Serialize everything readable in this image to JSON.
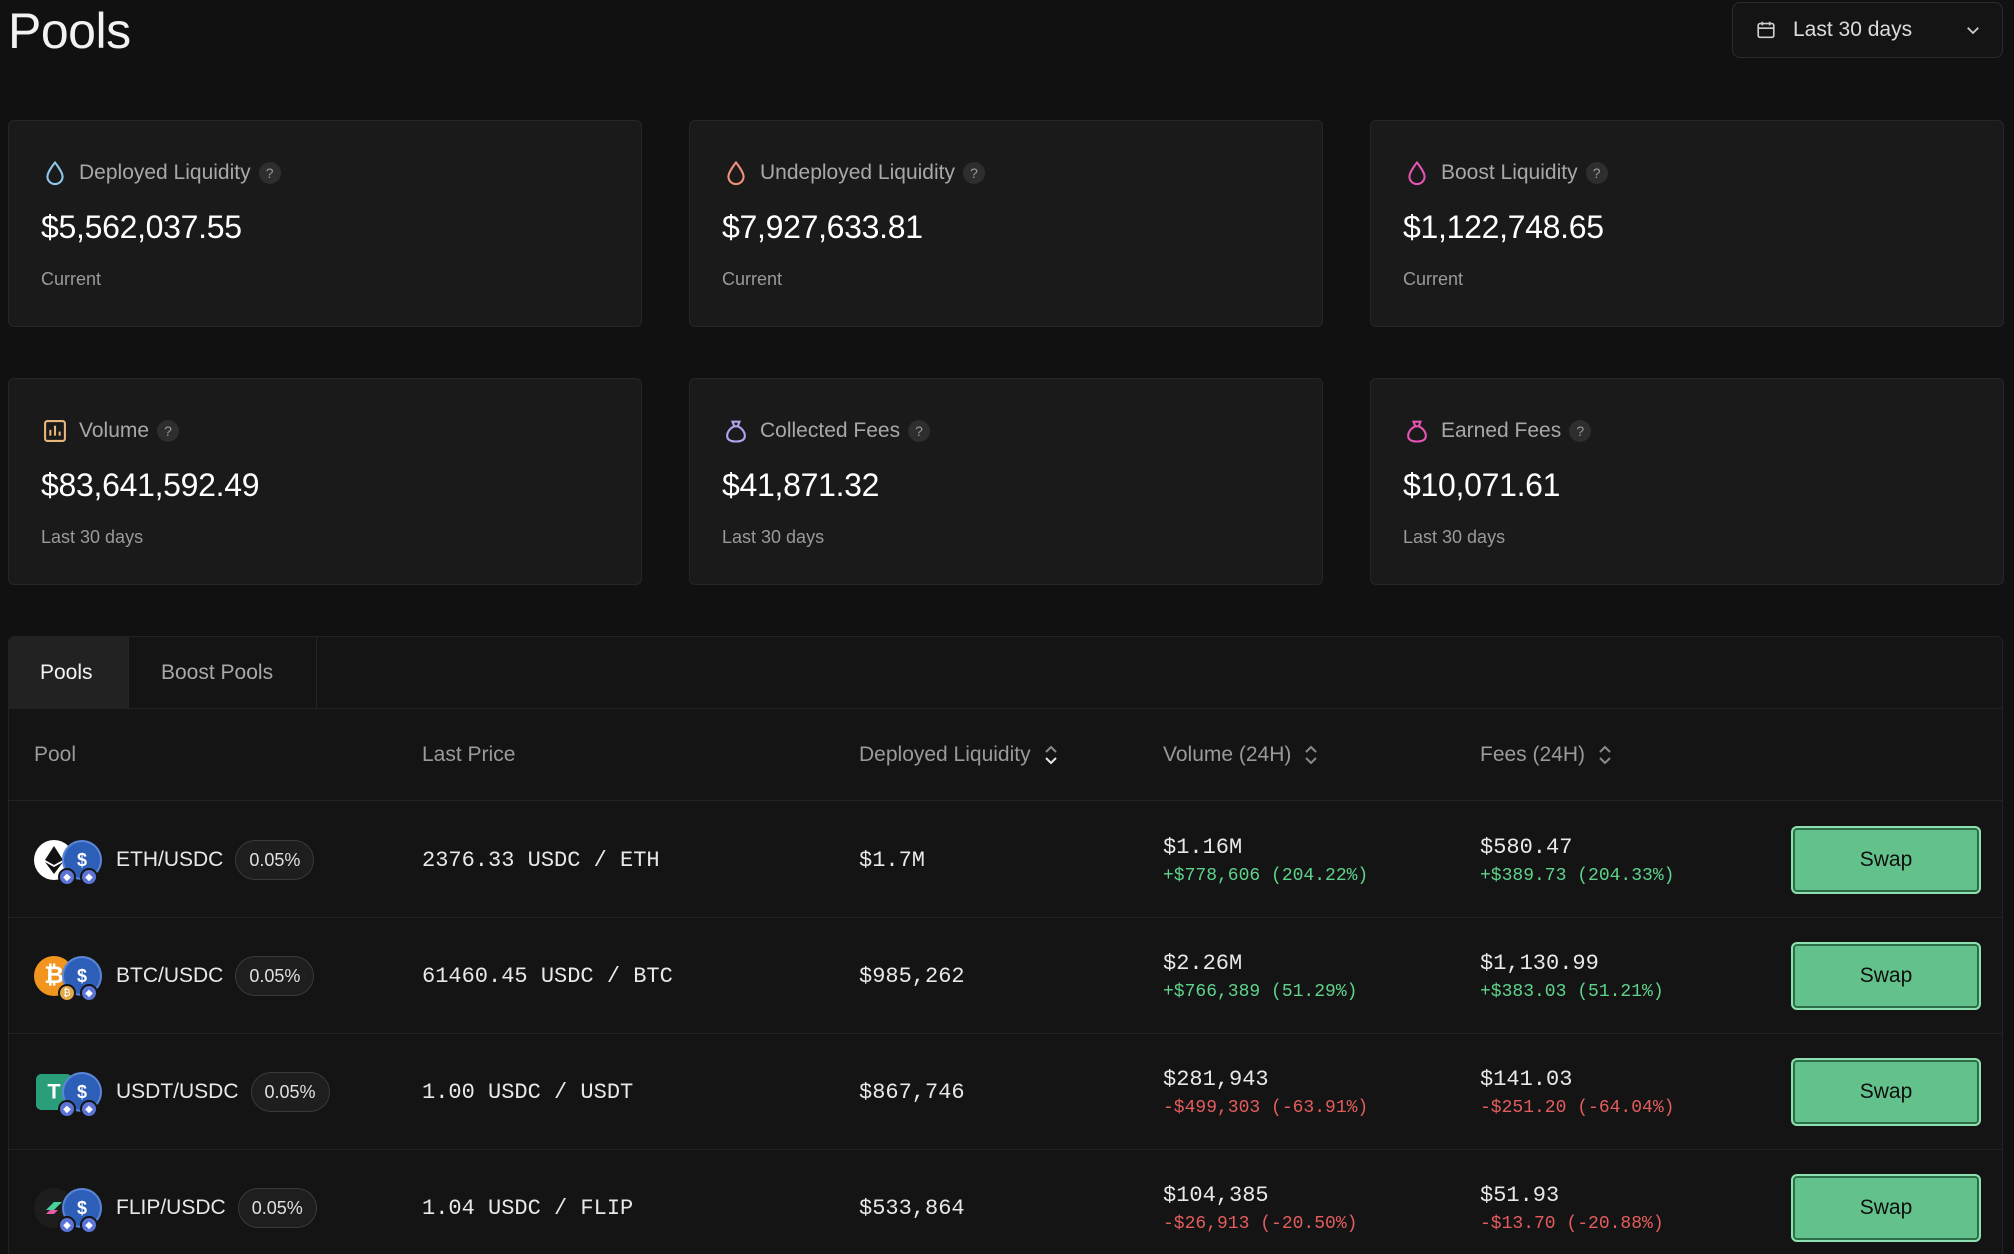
{
  "header": {
    "title": "Pools",
    "range_label": "Last 30 days"
  },
  "stats": [
    {
      "label": "Deployed Liquidity",
      "value": "$5,562,037.55",
      "sub": "Current",
      "icon": "drop-icon",
      "color": "#8ec7e8"
    },
    {
      "label": "Undeployed Liquidity",
      "value": "$7,927,633.81",
      "sub": "Current",
      "icon": "drop-icon",
      "color": "#f0907a"
    },
    {
      "label": "Boost Liquidity",
      "value": "$1,122,748.65",
      "sub": "Current",
      "icon": "drop-icon",
      "color": "#e454b0"
    },
    {
      "label": "Volume",
      "value": "$83,641,592.49",
      "sub": "Last 30 days",
      "icon": "bar-chart-icon",
      "color": "#e8b57a"
    },
    {
      "label": "Collected Fees",
      "value": "$41,871.32",
      "sub": "Last 30 days",
      "icon": "money-bag-icon",
      "color": "#b6a3f0"
    },
    {
      "label": "Earned Fees",
      "value": "$10,071.61",
      "sub": "Last 30 days",
      "icon": "money-bag-icon",
      "color": "#e454b0"
    }
  ],
  "help_glyph": "?",
  "tabs": [
    {
      "label": "Pools",
      "active": true
    },
    {
      "label": "Boost Pools",
      "active": false
    }
  ],
  "columns": {
    "pool": "Pool",
    "last_price": "Last Price",
    "deployed_liquidity": "Deployed Liquidity",
    "volume": "Volume (24H)",
    "fees": "Fees (24H)"
  },
  "rows": [
    {
      "pair": "ETH/USDC",
      "fee_tier": "0.05%",
      "base_icon": "eth-icon",
      "last_price": "2376.33 USDC / ETH",
      "deployed": "$1.7M",
      "volume": "$1.16M",
      "volume_change": "+$778,606 (204.22%)",
      "volume_dir": "pos",
      "fees": "$580.47",
      "fees_change": "+$389.73 (204.33%)",
      "fees_dir": "pos",
      "action": "Swap"
    },
    {
      "pair": "BTC/USDC",
      "fee_tier": "0.05%",
      "base_icon": "btc-icon",
      "last_price": "61460.45 USDC / BTC",
      "deployed": "$985,262",
      "volume": "$2.26M",
      "volume_change": "+$766,389 (51.29%)",
      "volume_dir": "pos",
      "fees": "$1,130.99",
      "fees_change": "+$383.03 (51.21%)",
      "fees_dir": "pos",
      "action": "Swap"
    },
    {
      "pair": "USDT/USDC",
      "fee_tier": "0.05%",
      "base_icon": "usdt-icon",
      "last_price": "1.00 USDC / USDT",
      "deployed": "$867,746",
      "volume": "$281,943",
      "volume_change": "-$499,303 (-63.91%)",
      "volume_dir": "neg",
      "fees": "$141.03",
      "fees_change": "-$251.20 (-64.04%)",
      "fees_dir": "neg",
      "action": "Swap"
    },
    {
      "pair": "FLIP/USDC",
      "fee_tier": "0.05%",
      "base_icon": "flip-icon",
      "last_price": "1.04 USDC / FLIP",
      "deployed": "$533,864",
      "volume": "$104,385",
      "volume_change": "-$26,913 (-20.50%)",
      "volume_dir": "neg",
      "fees": "$51.93",
      "fees_change": "-$13.70 (-20.88%)",
      "fees_dir": "neg",
      "action": "Swap"
    }
  ]
}
